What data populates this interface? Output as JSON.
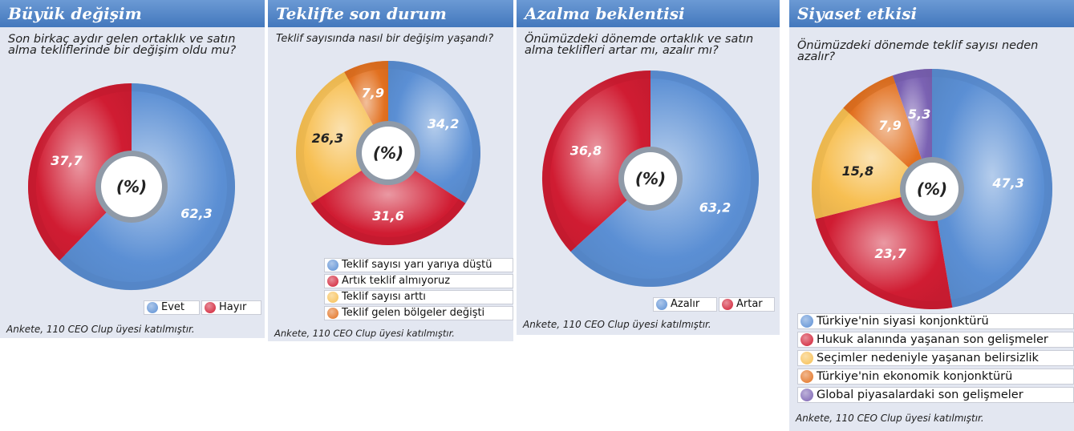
{
  "colors": {
    "blue": "#5b8fd4",
    "red": "#d01c32",
    "yellow": "#f7bf52",
    "orange": "#e2701f",
    "purple": "#7b62b3"
  },
  "chart_data": [
    {
      "type": "pie",
      "title": "Büyük değişim",
      "subtitle": "Son birkaç aydır gelen ortaklık ve satın alma tekliflerinde bir değişim oldu mu?",
      "center_label": "(%)",
      "categories": [
        "Evet",
        "Hayır"
      ],
      "values": [
        62.3,
        37.7
      ],
      "value_labels": [
        "62,3",
        "37,7"
      ],
      "colors": [
        "#5b8fd4",
        "#d01c32"
      ],
      "legend": "bottom-right",
      "note": "Ankete, 110 CEO Clup üyesi katılmıştır."
    },
    {
      "type": "pie",
      "title": "Teklifte son durum",
      "subtitle": "Teklif sayısında nasıl bir değişim yaşandı?",
      "center_label": "(%)",
      "categories": [
        "Teklif sayısı yarı yarıya düştü",
        "Artık teklif almıyoruz",
        "Teklif sayısı arttı",
        "Teklif gelen bölgeler değişti"
      ],
      "values": [
        34.2,
        31.6,
        26.3,
        7.9
      ],
      "value_labels": [
        "34,2",
        "31,6",
        "26,3",
        "7,9"
      ],
      "colors": [
        "#5b8fd4",
        "#d01c32",
        "#f7bf52",
        "#e2701f"
      ],
      "legend": "bottom-right",
      "note": "Ankete, 110 CEO Clup üyesi katılmıştır."
    },
    {
      "type": "pie",
      "title": "Azalma beklentisi",
      "subtitle": "Önümüzdeki dönemde ortaklık ve satın alma teklifleri artar mı, azalır mı?",
      "center_label": "(%)",
      "categories": [
        "Azalır",
        "Artar"
      ],
      "values": [
        63.2,
        36.8
      ],
      "value_labels": [
        "63,2",
        "36,8"
      ],
      "colors": [
        "#5b8fd4",
        "#d01c32"
      ],
      "legend": "bottom-right",
      "note": "Ankete, 110 CEO Clup üyesi katılmıştır."
    },
    {
      "type": "pie",
      "title": "Siyaset etkisi",
      "subtitle": "Önümüzdeki dönemde teklif sayısı neden azalır?",
      "center_label": "(%)",
      "categories": [
        "Türkiye'nin siyasi konjonktürü",
        "Hukuk alanında yaşanan son gelişmeler",
        "Seçimler nedeniyle yaşanan belirsizlik",
        "Türkiye'nin ekonomik konjonktürü",
        "Global piyasalardaki son gelişmeler"
      ],
      "values": [
        47.3,
        23.7,
        15.8,
        7.9,
        5.3
      ],
      "value_labels": [
        "47,3",
        "23,7",
        "15,8",
        "7,9",
        "5,3"
      ],
      "colors": [
        "#5b8fd4",
        "#d01c32",
        "#f7bf52",
        "#e2701f",
        "#7b62b3"
      ],
      "legend": "bottom",
      "note": "Ankete, 110 CEO Clup üyesi katılmıştır."
    }
  ]
}
